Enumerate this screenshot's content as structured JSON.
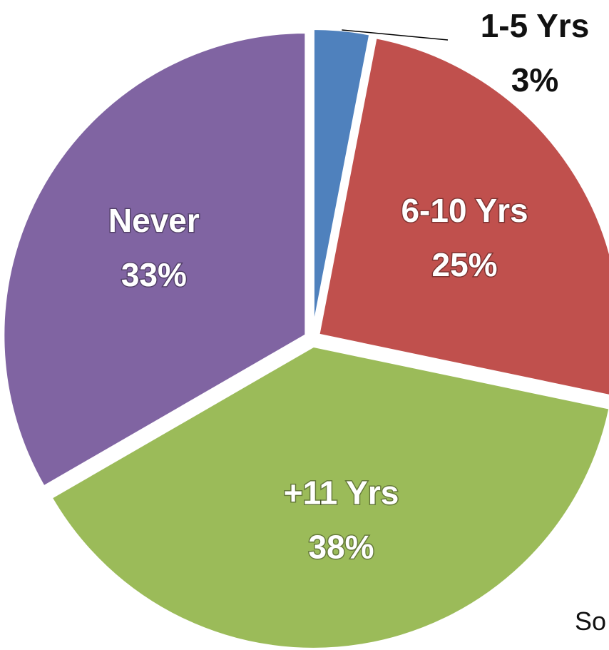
{
  "chart_data": {
    "type": "pie",
    "start_angle_deg": 0,
    "slices": [
      {
        "label": "1-5 Yrs",
        "value": 3,
        "display": "3%",
        "color": "#4F81BD",
        "label_position": "outside"
      },
      {
        "label": "6-10 Yrs",
        "value": 25,
        "display": "25%",
        "color": "#C0504D",
        "label_position": "inside"
      },
      {
        "label": "+11 Yrs",
        "value": 38,
        "display": "38%",
        "color": "#9BBB59",
        "label_position": "inside"
      },
      {
        "label": "Never",
        "value": 33,
        "display": "33%",
        "color": "#8064A2",
        "label_position": "inside"
      }
    ]
  },
  "footnote": "So"
}
